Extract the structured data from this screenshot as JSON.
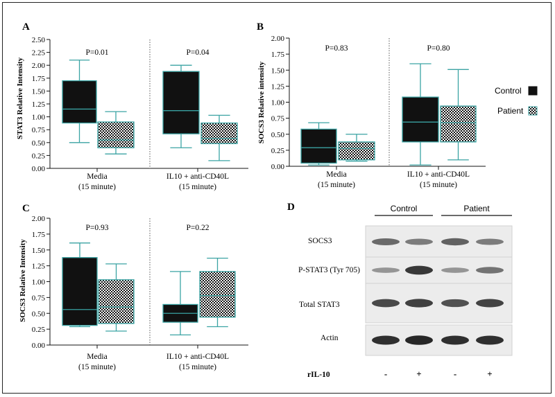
{
  "panels": [
    {
      "letter": "A"
    },
    {
      "letter": "B"
    },
    {
      "letter": "C"
    },
    {
      "letter": "D"
    }
  ],
  "legend": [
    {
      "label": "Control",
      "fill": "#111111"
    },
    {
      "label": "Patient",
      "fill": "checker"
    }
  ],
  "colors": {
    "box_stroke": "#3aa3a3",
    "control_fill": "#111111",
    "median_on_dark": "#3aa3a3",
    "median_on_pattern": "#3aa3a3"
  },
  "chart_data": [
    {
      "type": "box",
      "ylabel": "STAT3 Relative Intensity",
      "ylim": [
        0,
        2.5
      ],
      "yticks": [
        "0.00",
        "0.25",
        "0.50",
        "0.75",
        "1.00",
        "1.25",
        "1.50",
        "1.75",
        "2.00",
        "2.25",
        "2.50"
      ],
      "groups": [
        {
          "label_line1": "Media",
          "label_line2": "(15 minute)",
          "pvalue": "P=0.01",
          "boxes": [
            {
              "series": "Control",
              "min": 0.5,
              "q1": 0.88,
              "median": 1.15,
              "q3": 1.7,
              "max": 2.1
            },
            {
              "series": "Patient",
              "min": 0.28,
              "q1": 0.4,
              "median": 0.55,
              "q3": 0.9,
              "max": 1.1
            }
          ]
        },
        {
          "label_line1": "IL10 + anti-CD40L",
          "label_line2": "(15 minute)",
          "pvalue": "P=0.04",
          "boxes": [
            {
              "series": "Control",
              "min": 0.4,
              "q1": 0.67,
              "median": 1.12,
              "q3": 1.88,
              "max": 2.0
            },
            {
              "series": "Patient",
              "min": 0.15,
              "q1": 0.48,
              "median": 0.58,
              "q3": 0.88,
              "max": 1.03
            }
          ]
        }
      ]
    },
    {
      "type": "box",
      "ylabel": "SOCS3 Relative intensity",
      "ylim": [
        0,
        2.0
      ],
      "yticks": [
        "0.00",
        "0.25",
        "0.50",
        "0.75",
        "1.00",
        "1.25",
        "1.50",
        "1.75",
        "2.00"
      ],
      "groups": [
        {
          "label_line1": "Media",
          "label_line2": "(15 minute)",
          "pvalue": "P=0.83",
          "boxes": [
            {
              "series": "Control",
              "min": 0.02,
              "q1": 0.05,
              "median": 0.29,
              "q3": 0.58,
              "max": 0.68
            },
            {
              "series": "Patient",
              "min": 0.08,
              "q1": 0.1,
              "median": 0.28,
              "q3": 0.38,
              "max": 0.5
            }
          ]
        },
        {
          "label_line1": "IL10 + anti-CD40L",
          "label_line2": "(15 minute)",
          "pvalue": "P=0.80",
          "boxes": [
            {
              "series": "Control",
              "min": 0.02,
              "q1": 0.38,
              "median": 0.69,
              "q3": 1.08,
              "max": 1.6
            },
            {
              "series": "Patient",
              "min": 0.1,
              "q1": 0.38,
              "median": 0.68,
              "q3": 0.94,
              "max": 1.51
            }
          ]
        }
      ]
    },
    {
      "type": "box",
      "ylabel": "SOCS3 Relative Intensity",
      "ylim": [
        0,
        2.0
      ],
      "yticks": [
        "0.00",
        "0.25",
        "0.50",
        "0.75",
        "1.00",
        "1.25",
        "1.50",
        "1.75",
        "2.00"
      ],
      "groups": [
        {
          "label_line1": "Media",
          "label_line2": "(15 minute)",
          "pvalue": "P=0.93",
          "boxes": [
            {
              "series": "Control",
              "min": 0.29,
              "q1": 0.31,
              "median": 0.56,
              "q3": 1.38,
              "max": 1.61
            },
            {
              "series": "Patient",
              "min": 0.22,
              "q1": 0.34,
              "median": 0.6,
              "q3": 1.03,
              "max": 1.28
            }
          ]
        },
        {
          "label_line1": "IL10 + anti-CD40L",
          "label_line2": "(15 minute)",
          "pvalue": "P=0.22",
          "boxes": [
            {
              "series": "Control",
              "min": 0.16,
              "q1": 0.36,
              "median": 0.5,
              "q3": 0.64,
              "max": 1.16
            },
            {
              "series": "Patient",
              "min": 0.29,
              "q1": 0.44,
              "median": 0.78,
              "q3": 1.16,
              "max": 1.37
            }
          ]
        }
      ]
    }
  ],
  "western_blot": {
    "groups": [
      "Control",
      "Patient"
    ],
    "rows": [
      {
        "label": "SOCS3",
        "intensities": [
          0.55,
          0.45,
          0.6,
          0.45
        ]
      },
      {
        "label": "P-STAT3 (Tyr 705)",
        "intensities": [
          0.3,
          0.85,
          0.3,
          0.5
        ]
      },
      {
        "label": "Total STAT3",
        "intensities": [
          0.75,
          0.8,
          0.7,
          0.78
        ]
      },
      {
        "label": "Actin",
        "intensities": [
          0.9,
          0.95,
          0.9,
          0.9
        ]
      }
    ],
    "treatment_label": "rIL-10",
    "lane_signs": [
      "-",
      "+",
      "-",
      "+"
    ]
  }
}
